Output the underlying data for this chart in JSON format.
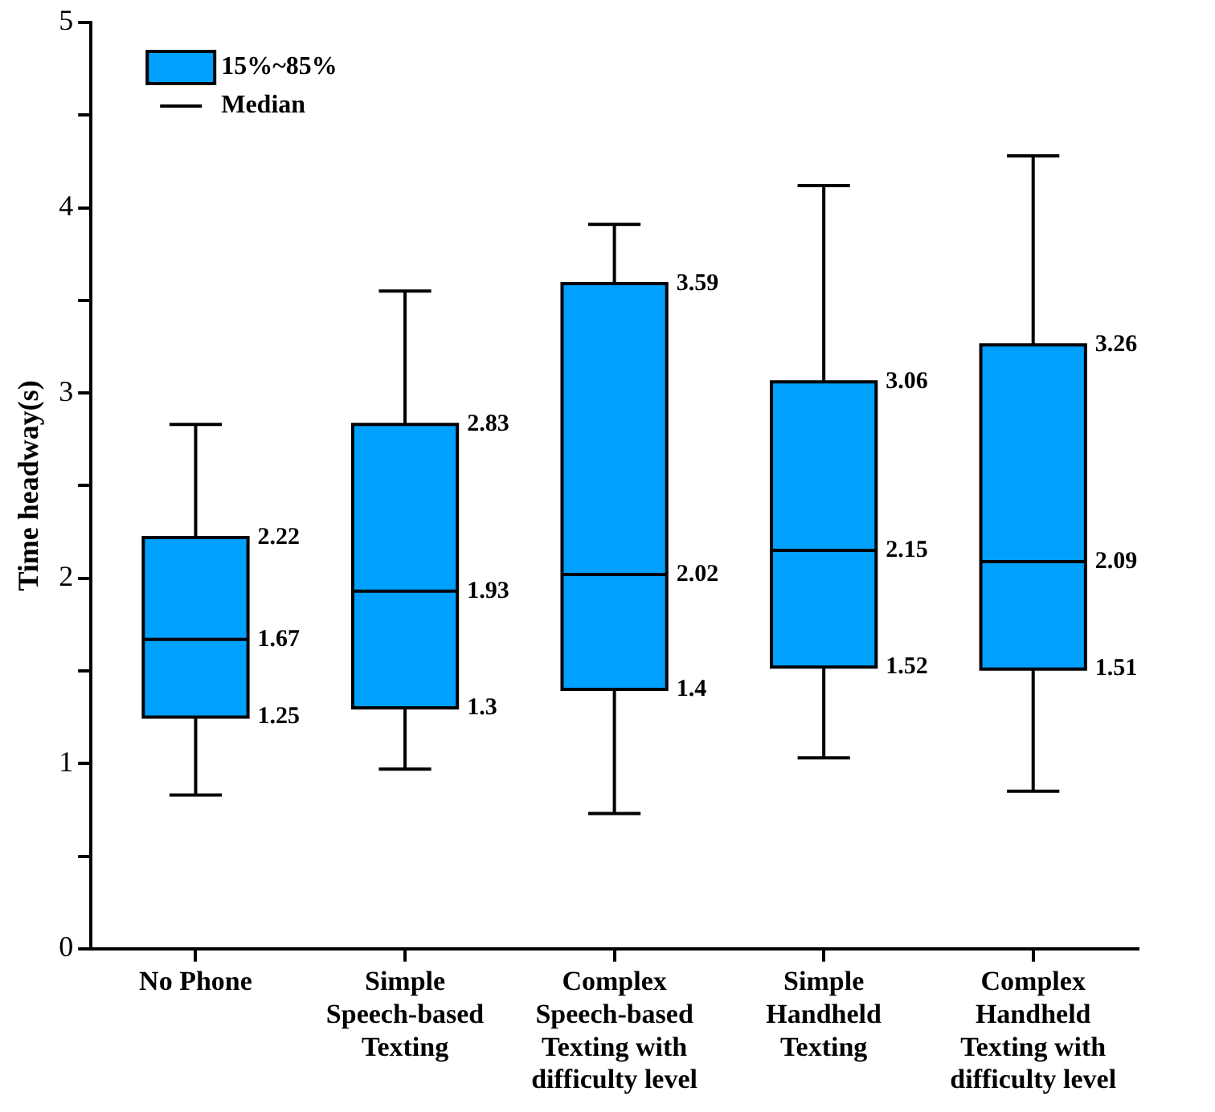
{
  "chart_data": {
    "type": "box",
    "ylabel": "Time headway(s)",
    "categories": [
      "No Phone",
      "Simple Speech-based Texting",
      "Complex Speech-based Texting with difficulty level",
      "Simple Handheld Texting",
      "Complex Handheld Texting with difficulty level"
    ],
    "series": [
      {
        "name": "15%~85%",
        "color": "#00a0ff",
        "boxes": [
          {
            "low": 0.83,
            "q1": 1.25,
            "median": 1.67,
            "q3": 2.22,
            "high": 2.83
          },
          {
            "low": 0.97,
            "q1": 1.3,
            "median": 1.93,
            "q3": 2.83,
            "high": 3.55
          },
          {
            "low": 0.73,
            "q1": 1.4,
            "median": 2.02,
            "q3": 3.59,
            "high": 3.91
          },
          {
            "low": 1.03,
            "q1": 1.52,
            "median": 2.15,
            "q3": 3.06,
            "high": 4.12
          },
          {
            "low": 0.85,
            "q1": 1.51,
            "median": 2.09,
            "q3": 3.26,
            "high": 4.28
          }
        ]
      }
    ],
    "annotations": [
      "Median",
      {
        "text": "2.22",
        "x": "No Phone",
        "y": 2.22
      },
      {
        "text": "1.67",
        "x": "No Phone",
        "y": 1.67
      },
      {
        "text": "1.25",
        "x": "No Phone",
        "y": 1.25
      },
      {
        "text": "2.83",
        "x": "Simple Speech-based Texting",
        "y": 2.83
      },
      {
        "text": "1.93",
        "x": "Simple Speech-based Texting",
        "y": 1.93
      },
      {
        "text": "1.3",
        "x": "Simple Speech-based Texting",
        "y": 1.3
      },
      {
        "text": "3.59",
        "x": "Complex Speech-based Texting with difficulty level",
        "y": 3.59
      },
      {
        "text": "2.02",
        "x": "Complex Speech-based Texting with difficulty level",
        "y": 2.02
      },
      {
        "text": "1.4",
        "x": "Complex Speech-based Texting with difficulty level",
        "y": 1.4
      },
      {
        "text": "3.06",
        "x": "Simple Handheld Texting",
        "y": 3.06
      },
      {
        "text": "2.15",
        "x": "Simple Handheld Texting",
        "y": 2.15
      },
      {
        "text": "1.52",
        "x": "Simple Handheld Texting",
        "y": 1.52
      },
      {
        "text": "3.26",
        "x": "Complex Handheld Texting with difficulty level",
        "y": 3.26
      },
      {
        "text": "2.09",
        "x": "Complex Handheld Texting with difficulty level",
        "y": 2.09
      },
      {
        "text": "1.51",
        "x": "Complex Handheld Texting with difficulty level",
        "y": 1.51
      }
    ],
    "ylim": [
      0,
      5
    ],
    "yticks": [
      0,
      {
        "value": 0.5,
        "label": null
      },
      1,
      {
        "value": 1.5,
        "label": null
      },
      2,
      {
        "value": 2.5,
        "label": null
      },
      3,
      {
        "value": 3.5,
        "label": null
      },
      4,
      {
        "value": 4.5,
        "label": null
      },
      5
    ],
    "legend": "top left",
    "grid": false
  }
}
